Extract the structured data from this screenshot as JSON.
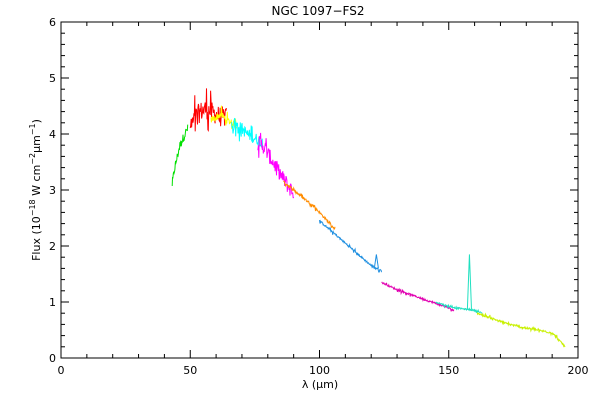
{
  "chart_data": {
    "type": "line",
    "title": "NGC 1097−FS2",
    "xlabel_symbol": "λ",
    "xlabel_unit": "μm",
    "ylabel_lead": "Flux (10",
    "ylabel_exp": "−18",
    "ylabel_mid": " W cm",
    "ylabel_exp2": "−2",
    "ylabel_mu": "μm",
    "ylabel_exp3": "−1",
    "ylabel_close": ")",
    "xlim": [
      0,
      200
    ],
    "ylim": [
      0,
      6
    ],
    "x_ticks": [
      0,
      50,
      100,
      150,
      200
    ],
    "y_ticks": [
      0,
      1,
      2,
      3,
      4,
      5,
      6
    ],
    "grid": false,
    "series": [
      {
        "color": "#00e000",
        "x": [
          43,
          44,
          45,
          46,
          47,
          48,
          49
        ],
        "y": [
          3.1,
          3.4,
          3.6,
          3.8,
          3.9,
          4.0,
          4.1
        ],
        "noise": 0.25
      },
      {
        "color": "#ff0000",
        "x": [
          50,
          52,
          54,
          56,
          58,
          60,
          62,
          64
        ],
        "y": [
          4.1,
          4.3,
          4.4,
          4.45,
          4.4,
          4.35,
          4.3,
          4.3
        ],
        "noise": 0.6
      },
      {
        "color": "#ffff00",
        "x": [
          58,
          60,
          62,
          64,
          66,
          68
        ],
        "y": [
          4.25,
          4.3,
          4.35,
          4.25,
          4.2,
          4.15
        ],
        "noise": 0.2
      },
      {
        "color": "#00ffff",
        "x": [
          66,
          68,
          70,
          72,
          74,
          76,
          78
        ],
        "y": [
          4.2,
          4.15,
          4.1,
          4.0,
          3.95,
          3.9,
          3.85
        ],
        "noise": 0.35
      },
      {
        "color": "#ff00ff",
        "x": [
          76,
          78,
          80,
          82,
          84,
          86,
          88,
          90
        ],
        "y": [
          3.85,
          3.8,
          3.65,
          3.5,
          3.35,
          3.2,
          3.05,
          2.95
        ],
        "noise": 0.45
      },
      {
        "color": "#ff8c00",
        "x": [
          86,
          90,
          94,
          98,
          102,
          106
        ],
        "y": [
          3.15,
          3.0,
          2.85,
          2.7,
          2.5,
          2.3
        ],
        "noise": 0.07
      },
      {
        "color": "#1f8fe0",
        "x": [
          100,
          105,
          110,
          115,
          120,
          124
        ],
        "y": [
          2.45,
          2.25,
          2.05,
          1.85,
          1.65,
          1.55
        ],
        "noise": 0.06
      },
      {
        "color": "#e000b0",
        "x": [
          124,
          130,
          136,
          142,
          148,
          152
        ],
        "y": [
          1.35,
          1.22,
          1.12,
          1.02,
          0.93,
          0.85
        ],
        "noise": 0.05
      },
      {
        "color": "#20e0c0",
        "x": [
          145,
          150,
          155,
          160,
          163
        ],
        "y": [
          1.0,
          0.92,
          0.88,
          0.85,
          0.8
        ],
        "noise": 0.04
      },
      {
        "color": "#c8f000",
        "x": [
          161,
          166,
          172,
          178,
          184,
          190,
          195
        ],
        "y": [
          0.8,
          0.72,
          0.62,
          0.55,
          0.5,
          0.45,
          0.2
        ],
        "noise": 0.06
      }
    ],
    "annotations": [
      {
        "feature": "emission-line",
        "x": 122,
        "y_peak": 1.85,
        "color": "#1f8fe0"
      },
      {
        "feature": "emission-line",
        "x": 158,
        "y_peak": 1.85,
        "color": "#20e0c0"
      }
    ]
  }
}
